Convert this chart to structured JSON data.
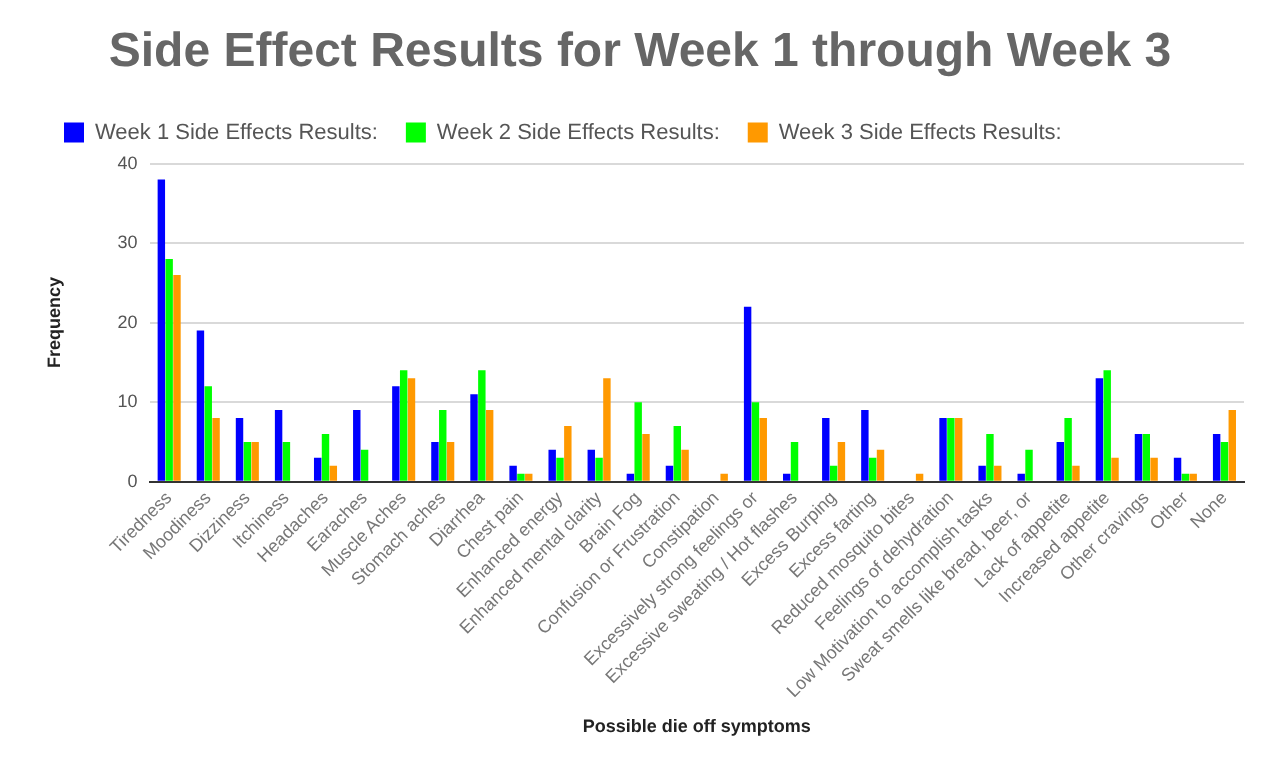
{
  "chart_data": {
    "type": "bar",
    "title": "Side Effect Results for Week 1 through Week 3",
    "xlabel": "Possible die off symptoms",
    "ylabel": "Frequency",
    "categories": [
      "Tiredness",
      "Moodiness",
      "Dizziness",
      "Itchiness",
      "Headaches",
      "Earaches",
      "Muscle Aches",
      "Stomach aches",
      "Diarrhea",
      "Chest pain",
      "Enhanced energy",
      "Enhanced mental clarity",
      "Brain Fog",
      "Confusion or Frustration",
      "Constipation",
      "Excessively strong feelings or",
      "Excessive sweating / Hot flashes",
      "Excess Burping",
      "Excess farting",
      "Reduced mosquito bites",
      "Feelings of dehydration",
      "Low Motivation to accomplish tasks",
      "Sweat smells like bread, beer, or",
      "Lack of appetite",
      "Increased appetite",
      "Other cravings",
      "Other",
      "None"
    ],
    "series": [
      {
        "name": "Week 1 Side Effects Results:",
        "color": "#0000ff",
        "values": [
          38,
          19,
          8,
          9,
          3,
          9,
          12,
          5,
          11,
          2,
          4,
          4,
          1,
          2,
          0,
          22,
          1,
          8,
          9,
          0,
          8,
          2,
          1,
          5,
          13,
          6,
          3,
          6
        ]
      },
      {
        "name": "Week 2 Side Effects Results:",
        "color": "#00ff00",
        "values": [
          28,
          12,
          5,
          5,
          6,
          4,
          14,
          9,
          14,
          1,
          3,
          3,
          10,
          7,
          0,
          10,
          5,
          2,
          3,
          0,
          8,
          6,
          4,
          8,
          14,
          6,
          1,
          5
        ]
      },
      {
        "name": "Week 3 Side Effects Results:",
        "color": "#ff9900",
        "values": [
          26,
          8,
          5,
          0,
          2,
          0,
          13,
          5,
          9,
          1,
          7,
          13,
          6,
          4,
          1,
          8,
          0,
          5,
          4,
          1,
          8,
          2,
          0,
          2,
          3,
          3,
          1,
          9
        ]
      }
    ],
    "ylim": [
      0,
      40
    ],
    "yticks": [
      0,
      10,
      20,
      30,
      40
    ],
    "grid": "y",
    "legend": "top"
  }
}
